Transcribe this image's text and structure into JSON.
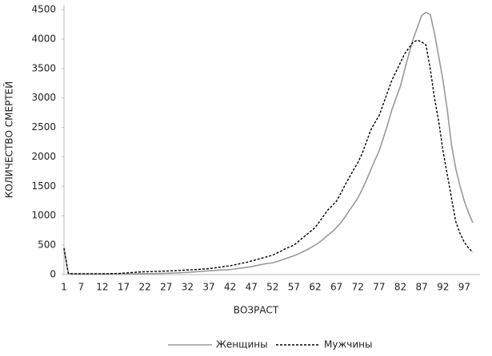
{
  "chart_data": {
    "type": "line",
    "x_label": "ВОЗРАСТ",
    "y_label": "КОЛИЧЕСТВО СМЕРТЕЙ",
    "categories": [
      "1",
      null,
      null,
      null,
      "7",
      null,
      null,
      null,
      null,
      "12",
      null,
      null,
      null,
      null,
      "17",
      null,
      null,
      null,
      null,
      "22",
      null,
      null,
      null,
      null,
      "27",
      null,
      null,
      null,
      null,
      "32",
      null,
      null,
      null,
      null,
      "37",
      null,
      null,
      null,
      null,
      "42",
      null,
      null,
      null,
      null,
      "47",
      null,
      null,
      null,
      null,
      "52",
      null,
      null,
      null,
      null,
      "57",
      null,
      null,
      null,
      null,
      "62",
      null,
      null,
      null,
      null,
      "67",
      null,
      null,
      null,
      null,
      "72",
      null,
      null,
      null,
      null,
      "77",
      null,
      null,
      null,
      null,
      "82",
      null,
      null,
      null,
      null,
      "87",
      null,
      null,
      null,
      null,
      "92",
      null,
      null,
      null,
      null,
      "97",
      null,
      null
    ],
    "series": [
      {
        "name": "Женщины",
        "color": "#999999",
        "dash": false,
        "values": [
          430,
          20,
          10,
          10,
          10,
          10,
          10,
          10,
          10,
          10,
          10,
          10,
          10,
          10,
          12,
          12,
          13,
          14,
          15,
          16,
          17,
          18,
          19,
          20,
          22,
          24,
          27,
          30,
          34,
          38,
          43,
          48,
          53,
          58,
          63,
          68,
          73,
          78,
          80,
          85,
          95,
          105,
          115,
          125,
          135,
          150,
          165,
          180,
          190,
          200,
          220,
          245,
          270,
          295,
          320,
          350,
          385,
          420,
          460,
          500,
          550,
          610,
          670,
          730,
          800,
          880,
          980,
          1090,
          1190,
          1300,
          1440,
          1600,
          1770,
          1940,
          2100,
          2320,
          2550,
          2800,
          3000,
          3200,
          3480,
          3750,
          4000,
          4200,
          4400,
          4450,
          4420,
          4100,
          3700,
          3300,
          2800,
          2200,
          1800,
          1500,
          1250,
          1050,
          880
        ]
      },
      {
        "name": "Мужчины",
        "color": "#000000",
        "dash": true,
        "values": [
          450,
          20,
          15,
          15,
          15,
          15,
          15,
          15,
          15,
          15,
          16,
          17,
          18,
          20,
          25,
          30,
          35,
          40,
          45,
          48,
          50,
          52,
          55,
          58,
          60,
          63,
          66,
          70,
          74,
          78,
          82,
          86,
          90,
          95,
          100,
          110,
          120,
          130,
          140,
          150,
          165,
          180,
          195,
          210,
          230,
          250,
          270,
          290,
          310,
          330,
          365,
          400,
          440,
          470,
          500,
          560,
          620,
          680,
          740,
          800,
          900,
          1000,
          1100,
          1170,
          1250,
          1380,
          1520,
          1650,
          1780,
          1900,
          2050,
          2250,
          2450,
          2580,
          2700,
          2900,
          3100,
          3300,
          3450,
          3600,
          3750,
          3850,
          3950,
          3980,
          3950,
          3900,
          3500,
          3000,
          2600,
          2100,
          1700,
          1300,
          900,
          700,
          550,
          450,
          380
        ]
      }
    ],
    "ylim": [
      0,
      4500
    ],
    "yticks": [
      0,
      500,
      1000,
      1500,
      2000,
      2500,
      3000,
      3500,
      4000,
      4500
    ],
    "grid": false
  }
}
